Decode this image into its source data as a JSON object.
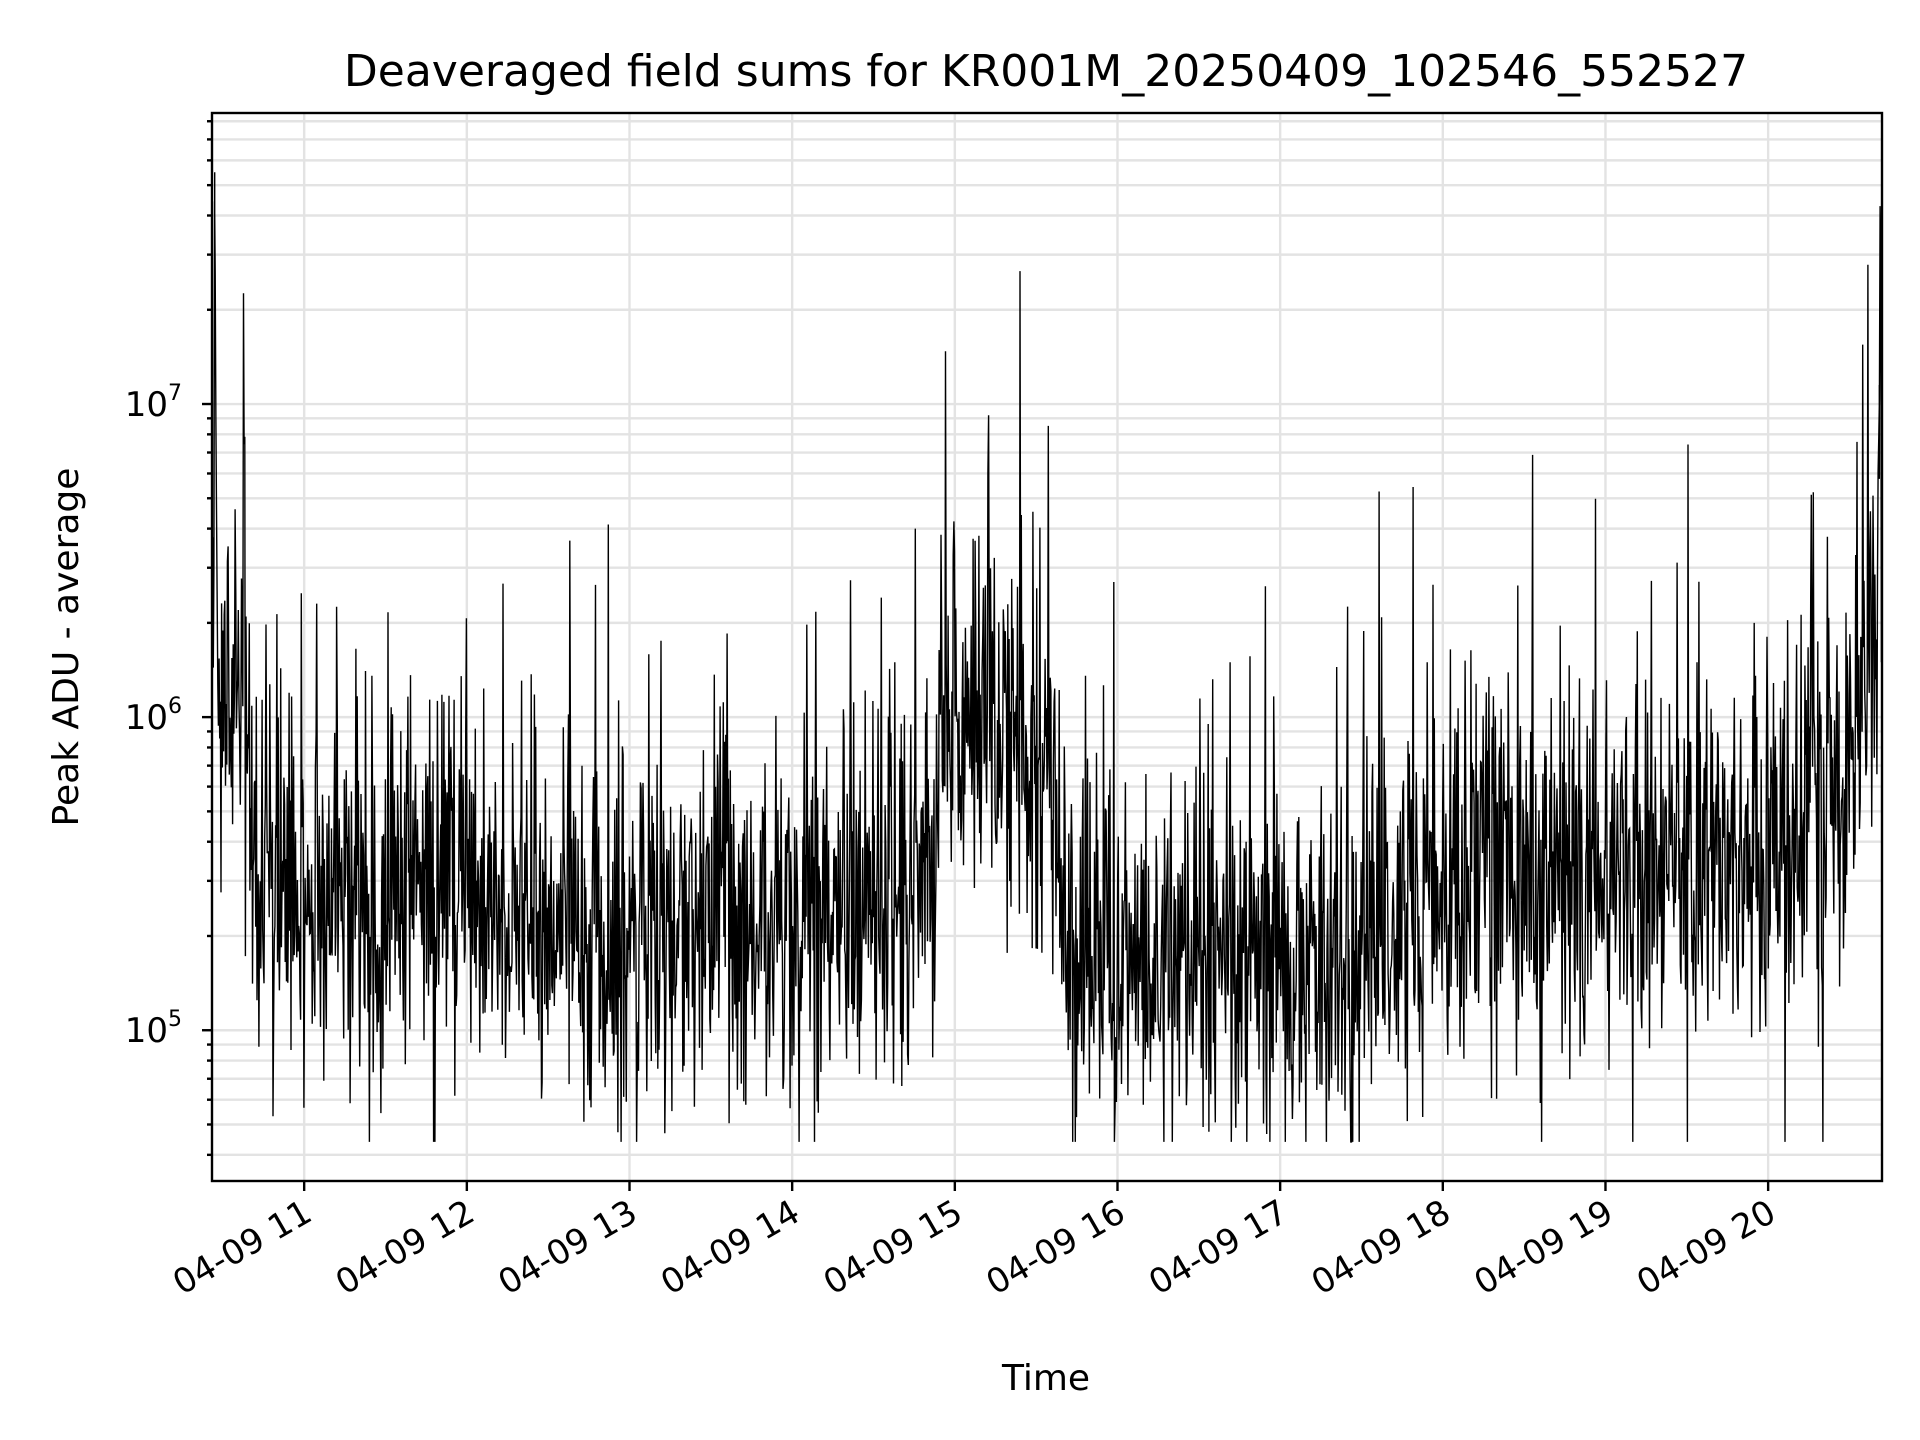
{
  "chart_data": {
    "type": "line",
    "title": "Deaveraged field sums for KR001M_20250409_102546_552527",
    "xlabel": "Time",
    "ylabel": "Peak ADU - average",
    "x_scale": "time",
    "y_scale": "log",
    "xlim": [
      "2025-04-09 10:26",
      "2025-04-09 20:42"
    ],
    "ylim": [
      33000,
      85000000
    ],
    "x_ticks": [
      "2025-04-09 11:00",
      "2025-04-09 12:00",
      "2025-04-09 13:00",
      "2025-04-09 14:00",
      "2025-04-09 15:00",
      "2025-04-09 16:00",
      "2025-04-09 17:00",
      "2025-04-09 18:00",
      "2025-04-09 19:00",
      "2025-04-09 20:00"
    ],
    "x_tick_labels": [
      "04-09 11",
      "04-09 12",
      "04-09 13",
      "04-09 14",
      "04-09 15",
      "04-09 16",
      "04-09 17",
      "04-09 18",
      "04-09 19",
      "04-09 20"
    ],
    "y_ticks": [
      100000,
      1000000,
      10000000
    ],
    "y_tick_labels": [
      {
        "base": "10",
        "exp": "5"
      },
      {
        "base": "10",
        "exp": "6"
      },
      {
        "base": "10",
        "exp": "7"
      }
    ],
    "grid": "major and minor",
    "series": [
      {
        "color": "#000000",
        "x": [
          "2025-04-09 10:26",
          "2025-04-09 10:27",
          "2025-04-09 10:28",
          "2025-04-09 10:30",
          "2025-04-09 10:33",
          "2025-04-09 10:36",
          "2025-04-09 10:38",
          "2025-04-09 10:40",
          "2025-04-09 10:42",
          "2025-04-09 10:45",
          "2025-04-09 10:50",
          "2025-04-09 10:55",
          "2025-04-09 11:00",
          "2025-04-09 11:10",
          "2025-04-09 11:20",
          "2025-04-09 11:30",
          "2025-04-09 11:45",
          "2025-04-09 12:00",
          "2025-04-09 12:15",
          "2025-04-09 12:30",
          "2025-04-09 12:45",
          "2025-04-09 13:00",
          "2025-04-09 13:15",
          "2025-04-09 13:30",
          "2025-04-09 13:45",
          "2025-04-09 14:00",
          "2025-04-09 14:15",
          "2025-04-09 14:30",
          "2025-04-09 14:45",
          "2025-04-09 14:52",
          "2025-04-09 14:55",
          "2025-04-09 15:00",
          "2025-04-09 15:10",
          "2025-04-09 15:20",
          "2025-04-09 15:30",
          "2025-04-09 15:36",
          "2025-04-09 15:40",
          "2025-04-09 15:45",
          "2025-04-09 16:00",
          "2025-04-09 16:15",
          "2025-04-09 16:30",
          "2025-04-09 16:45",
          "2025-04-09 17:00",
          "2025-04-09 17:15",
          "2025-04-09 17:30",
          "2025-04-09 17:40",
          "2025-04-09 17:45",
          "2025-04-09 18:00",
          "2025-04-09 18:15",
          "2025-04-09 18:30",
          "2025-04-09 18:45",
          "2025-04-09 19:00",
          "2025-04-09 19:15",
          "2025-04-09 19:30",
          "2025-04-09 19:45",
          "2025-04-09 20:00",
          "2025-04-09 20:10",
          "2025-04-09 20:20",
          "2025-04-09 20:30",
          "2025-04-09 20:35",
          "2025-04-09 20:38",
          "2025-04-09 20:40",
          "2025-04-09 20:41",
          "2025-04-09 20:42"
        ],
        "y": [
          900000,
          55000000,
          1000000,
          1200000,
          900000,
          1500000,
          1100000,
          700000,
          450000,
          300000,
          280000,
          260000,
          290000,
          270000,
          230000,
          260000,
          300000,
          260000,
          240000,
          230000,
          210000,
          190000,
          200000,
          210000,
          230000,
          220000,
          230000,
          260000,
          300000,
          400000,
          900000,
          800000,
          900000,
          850000,
          800000,
          700000,
          200000,
          180000,
          170000,
          160000,
          150000,
          180000,
          180000,
          170000,
          200000,
          220000,
          250000,
          280000,
          300000,
          260000,
          280000,
          300000,
          320000,
          340000,
          360000,
          380000,
          420000,
          500000,
          700000,
          1500000,
          1600000,
          1500000,
          11500000,
          1400000
        ],
        "y_range": [
          44000,
          55000000
        ]
      }
    ]
  }
}
